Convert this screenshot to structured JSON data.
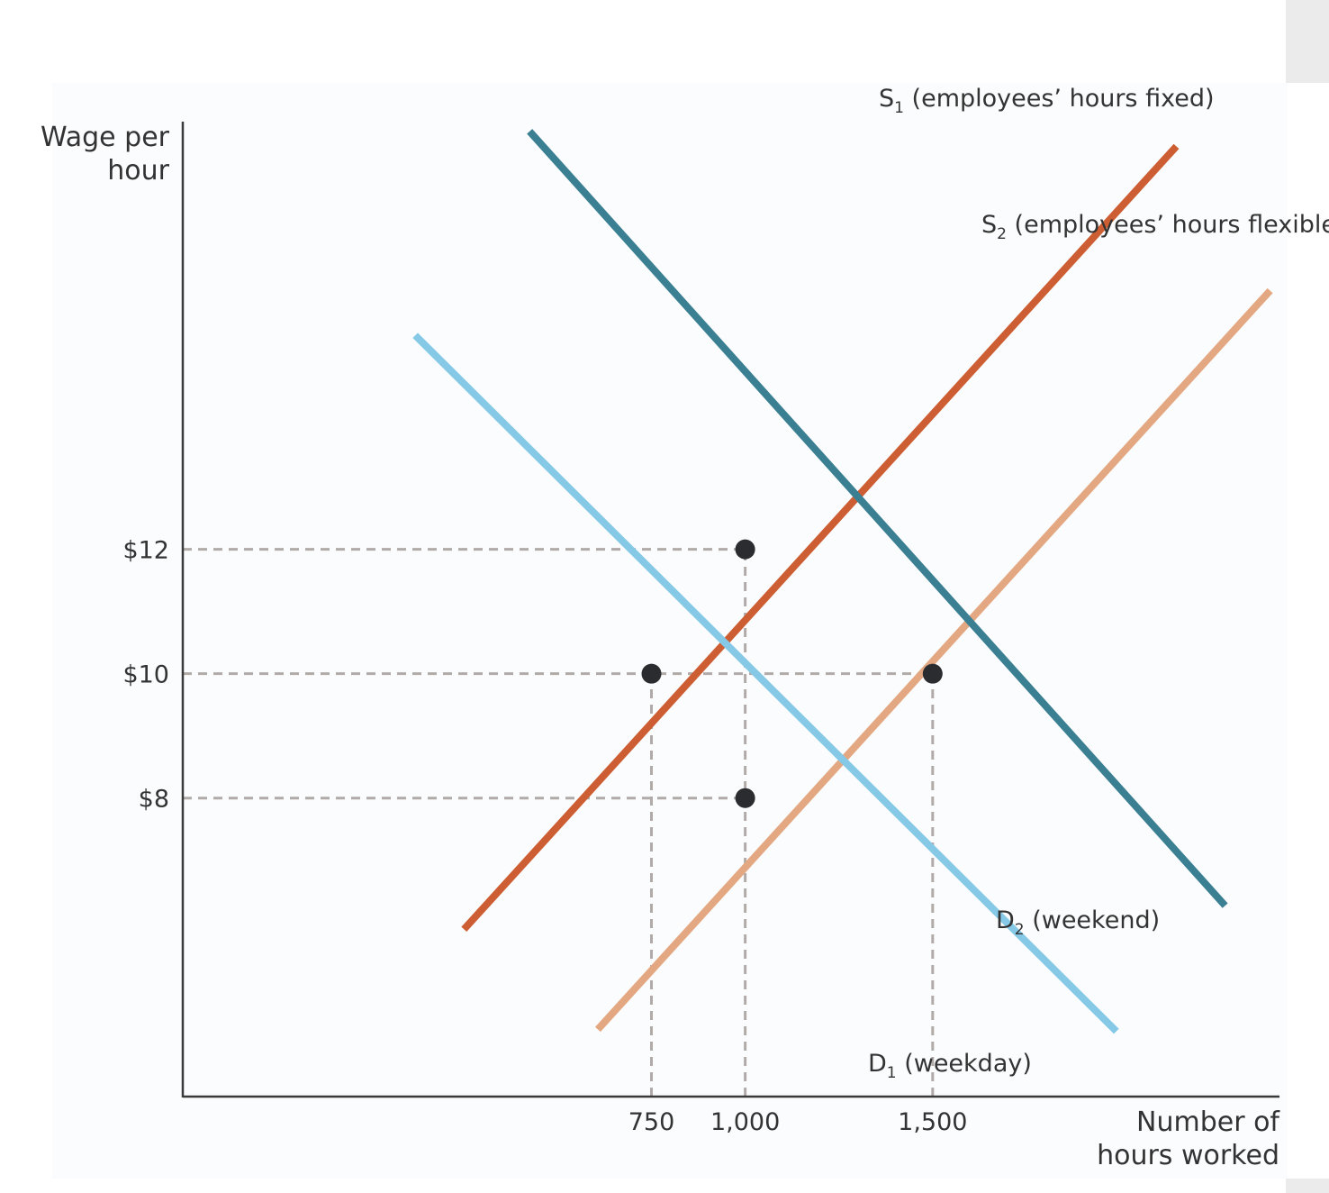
{
  "chart_data": {
    "type": "line",
    "ylabel_lines": [
      "Wage per",
      "hour"
    ],
    "xlabel_lines": [
      "Number of",
      "hours worked"
    ],
    "y_ticks": [
      {
        "value": 12,
        "label": "$12"
      },
      {
        "value": 10,
        "label": "$10"
      },
      {
        "value": 8,
        "label": "$8"
      }
    ],
    "x_ticks": [
      {
        "value": 750,
        "label": "750"
      },
      {
        "value": 1000,
        "label": "1,000"
      },
      {
        "value": 1500,
        "label": "1,500"
      }
    ],
    "series": [
      {
        "id": "s1",
        "label_main": "S",
        "label_sub": "1",
        "label_rest": " (employees’ hours fixed)",
        "color": "#cd5e33",
        "points": [
          [
            250,
            5.89
          ],
          [
            2150,
            18.48
          ]
        ]
      },
      {
        "id": "s2",
        "label_main": "S",
        "label_sub": "2",
        "label_rest": " (employees’ hours flexible)",
        "color": "#e3a882",
        "points": [
          [
            607,
            4.28
          ],
          [
            2400,
            16.16
          ]
        ]
      },
      {
        "id": "d1",
        "label_main": "D",
        "label_sub": "1",
        "label_rest": " (weekday)",
        "color": "#86c9e6",
        "points": [
          [
            120,
            15.44
          ],
          [
            1990,
            4.25
          ]
        ]
      },
      {
        "id": "d2",
        "label_main": "D",
        "label_sub": "2",
        "label_rest": " (weekend)",
        "color": "#3a7f92",
        "points": [
          [
            425,
            18.72
          ],
          [
            2280,
            6.27
          ]
        ]
      }
    ],
    "equilibria": [
      {
        "x": 1000,
        "y": 12
      },
      {
        "x": 750,
        "y": 10
      },
      {
        "x": 1500,
        "y": 10
      },
      {
        "x": 1000,
        "y": 8
      }
    ],
    "guides": [
      {
        "from": [
          0,
          12
        ],
        "to": [
          1000,
          12
        ]
      },
      {
        "from": [
          0,
          10
        ],
        "to": [
          1500,
          10
        ]
      },
      {
        "from": [
          0,
          8
        ],
        "to": [
          1000,
          8
        ]
      },
      {
        "from": [
          750,
          0
        ],
        "to": [
          750,
          10
        ]
      },
      {
        "from": [
          1000,
          0
        ],
        "to": [
          1000,
          12
        ]
      },
      {
        "from": [
          1500,
          0
        ],
        "to": [
          1500,
          10
        ]
      }
    ],
    "xlim": [
      -500,
      2425
    ],
    "ylim": [
      3.2,
      19.5
    ],
    "grid": false,
    "legend": "inline labels at line ends"
  }
}
